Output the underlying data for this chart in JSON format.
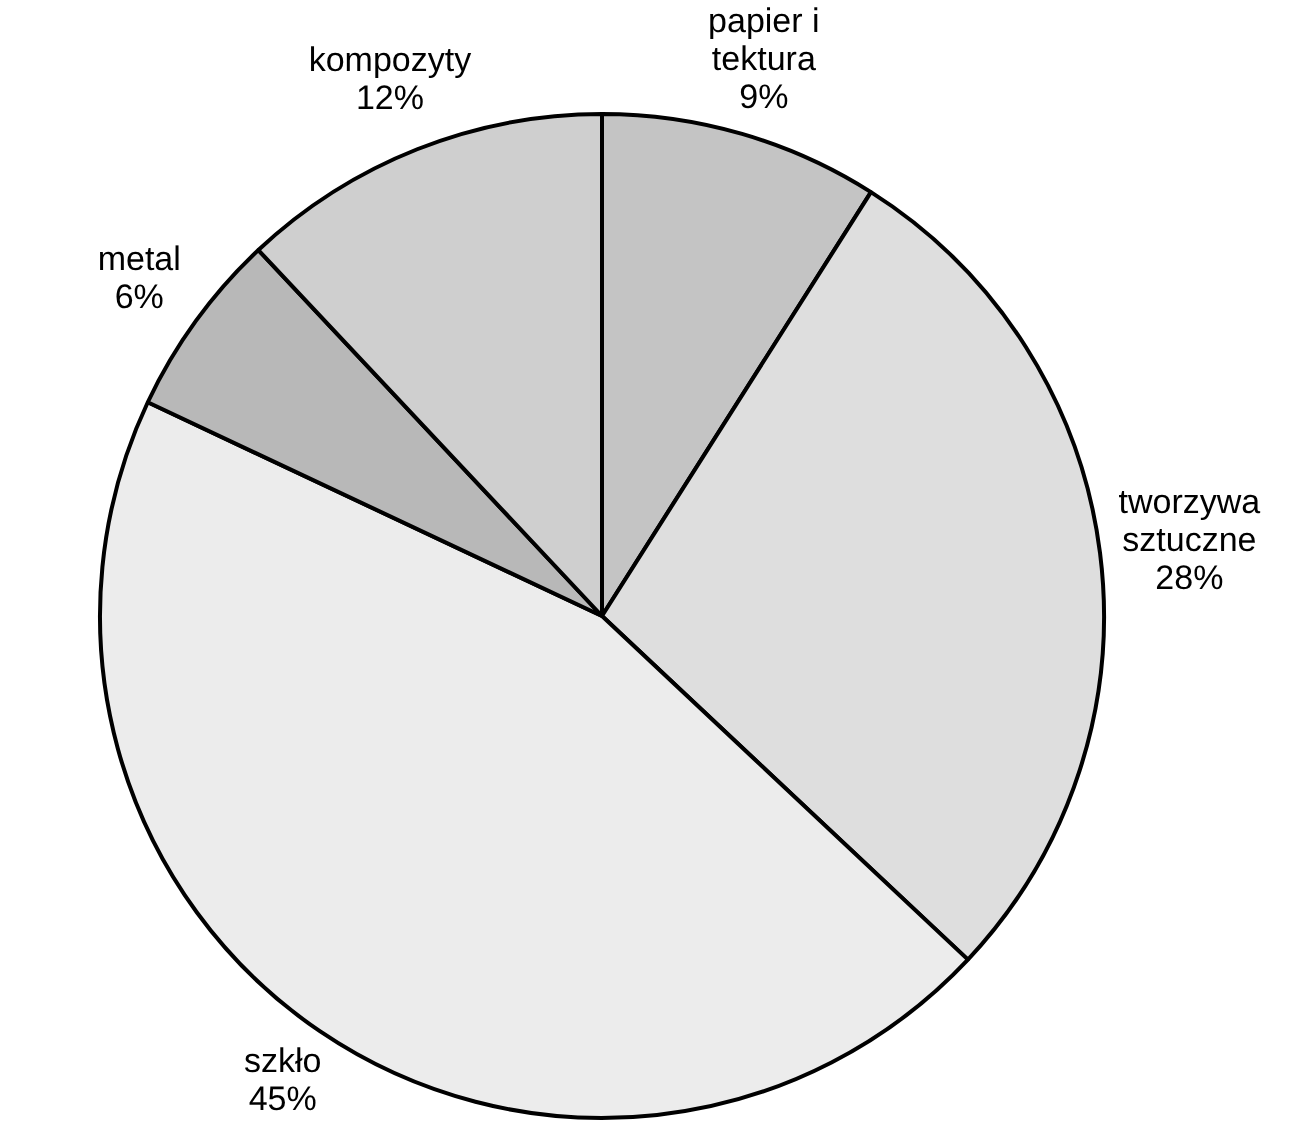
{
  "chart_data": {
    "type": "pie",
    "categories": [
      "papier i tektura",
      "tworzywa sztuczne",
      "szkło",
      "metal",
      "kompozyty"
    ],
    "values": [
      9,
      28,
      45,
      6,
      12
    ],
    "value_labels": [
      "9%",
      "28%",
      "45%",
      "6%",
      "12%"
    ],
    "colors": [
      "#c4c4c4",
      "#dedede",
      "#ececec",
      "#b8b8b8",
      "#cfcfcf"
    ],
    "legend": false
  }
}
